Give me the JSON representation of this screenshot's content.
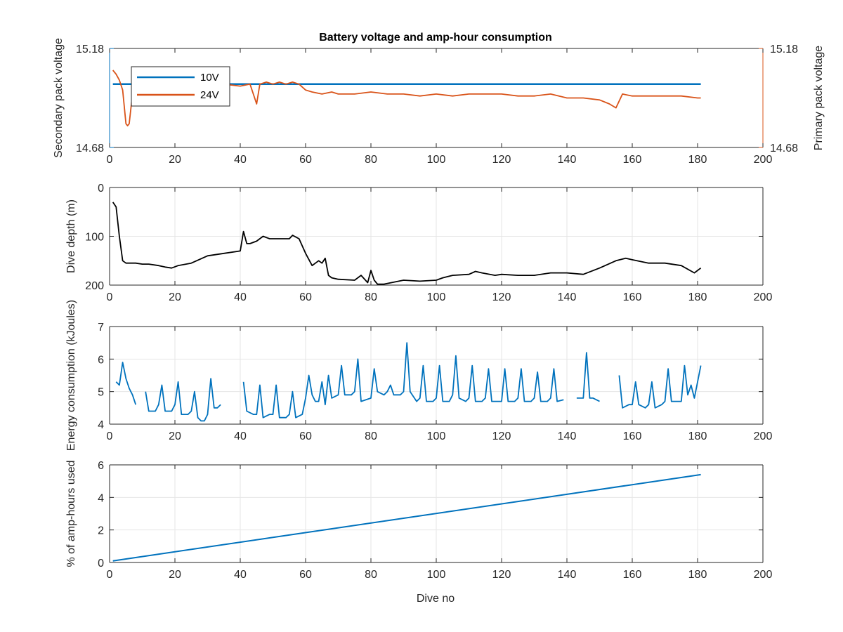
{
  "figure_title": "Battery voltage and amp-hour consumption",
  "x_label": "Dive no",
  "colors": {
    "blue": "#0072bd",
    "orange": "#d95319",
    "black": "#000000",
    "grid": "#e6e6e6"
  },
  "chart_data": [
    {
      "type": "line",
      "title": "Battery voltage and amp-hour consumption",
      "xlabel": "",
      "ylabel": "Secondary pack voltage",
      "ylabel_right": "Primary pack voltage",
      "xlim": [
        0,
        200
      ],
      "ylim": [
        14.68,
        15.18
      ],
      "ylim_right": [
        14.68,
        15.18
      ],
      "x_ticks": [
        0,
        20,
        40,
        60,
        80,
        100,
        120,
        140,
        160,
        180,
        200
      ],
      "y_ticks": [
        14.68,
        15.18
      ],
      "y_ticks_right": [
        14.68,
        15.18
      ],
      "grid": false,
      "legend": "top-left",
      "series": [
        {
          "name": "10V",
          "axis": "left",
          "color": "#0072bd",
          "x": [
            1,
            181
          ],
          "y": [
            15.0,
            15.0
          ]
        },
        {
          "name": "24V",
          "axis": "right",
          "color": "#d95319",
          "x": [
            1,
            2,
            3,
            4,
            5,
            5.5,
            6,
            7,
            8,
            10,
            15,
            20,
            25,
            30,
            35,
            40,
            43,
            44,
            45,
            46,
            48,
            50,
            52,
            54,
            56,
            58,
            60,
            62,
            65,
            68,
            70,
            75,
            80,
            85,
            90,
            95,
            100,
            105,
            110,
            115,
            120,
            125,
            130,
            135,
            140,
            145,
            150,
            153,
            155,
            157,
            160,
            165,
            170,
            175,
            180,
            181
          ],
          "y": [
            15.07,
            15.05,
            15.02,
            14.97,
            14.8,
            14.79,
            14.8,
            14.95,
            14.99,
            15.0,
            15.0,
            14.99,
            15.0,
            14.99,
            15.0,
            14.99,
            15.0,
            14.95,
            14.9,
            15.0,
            15.01,
            15.0,
            15.01,
            15.0,
            15.01,
            15.0,
            14.97,
            14.96,
            14.95,
            14.96,
            14.95,
            14.95,
            14.96,
            14.95,
            14.95,
            14.94,
            14.95,
            14.94,
            14.95,
            14.95,
            14.95,
            14.94,
            14.94,
            14.95,
            14.93,
            14.93,
            14.92,
            14.9,
            14.88,
            14.95,
            14.94,
            14.94,
            14.94,
            14.94,
            14.93,
            14.93
          ]
        }
      ]
    },
    {
      "type": "line",
      "xlabel": "",
      "ylabel": "Dive depth (m)",
      "xlim": [
        0,
        200
      ],
      "ylim": [
        0,
        200
      ],
      "y_reversed": true,
      "x_ticks": [
        0,
        20,
        40,
        60,
        80,
        100,
        120,
        140,
        160,
        180,
        200
      ],
      "y_ticks": [
        0,
        100,
        200
      ],
      "grid": true,
      "series": [
        {
          "color": "#000000",
          "x": [
            1,
            2,
            3,
            4,
            5,
            6,
            8,
            10,
            12,
            15,
            17,
            19,
            21,
            25,
            30,
            35,
            40,
            41,
            42,
            43,
            45,
            47,
            49,
            52,
            55,
            56,
            58,
            60,
            62,
            64,
            65,
            66,
            67,
            68,
            70,
            75,
            77,
            79,
            80,
            81,
            82,
            84,
            90,
            95,
            100,
            102,
            105,
            110,
            112,
            114,
            118,
            120,
            125,
            130,
            135,
            140,
            145,
            150,
            155,
            158,
            160,
            165,
            170,
            175,
            179,
            181
          ],
          "y": [
            30,
            40,
            100,
            150,
            155,
            155,
            155,
            157,
            157,
            160,
            163,
            165,
            160,
            155,
            140,
            135,
            130,
            90,
            115,
            115,
            110,
            100,
            105,
            105,
            105,
            98,
            105,
            135,
            160,
            150,
            155,
            145,
            180,
            185,
            188,
            190,
            180,
            195,
            170,
            190,
            198,
            198,
            190,
            192,
            190,
            185,
            180,
            178,
            172,
            175,
            180,
            178,
            180,
            180,
            175,
            175,
            178,
            165,
            150,
            145,
            148,
            155,
            155,
            160,
            175,
            165
          ]
        }
      ]
    },
    {
      "type": "line",
      "xlabel": "",
      "ylabel": "Energy consumption (kJoules)",
      "xlim": [
        0,
        200
      ],
      "ylim": [
        4,
        7
      ],
      "x_ticks": [
        0,
        20,
        40,
        60,
        80,
        100,
        120,
        140,
        160,
        180,
        200
      ],
      "y_ticks": [
        4,
        5,
        6,
        7
      ],
      "grid": true,
      "series": [
        {
          "color": "#0072bd",
          "segments": [
            {
              "x": [
                2,
                3,
                4,
                5,
                6,
                7,
                8
              ],
              "y": [
                5.3,
                5.2,
                5.9,
                5.4,
                5.1,
                4.9,
                4.6
              ]
            },
            {
              "x": [
                11,
                12,
                14,
                15,
                16,
                17,
                19,
                20,
                21,
                22,
                24,
                25,
                26,
                27,
                28,
                29,
                30,
                31,
                32,
                33,
                34
              ],
              "y": [
                5.0,
                4.4,
                4.4,
                4.6,
                5.2,
                4.4,
                4.4,
                4.6,
                5.3,
                4.3,
                4.3,
                4.4,
                5.0,
                4.2,
                4.1,
                4.1,
                4.3,
                5.4,
                4.5,
                4.5,
                4.6
              ]
            },
            {
              "x": [
                41,
                42,
                44,
                45,
                46,
                47,
                49,
                50,
                51,
                52,
                54,
                55,
                56,
                57,
                59,
                60,
                61,
                62,
                63,
                64,
                65,
                66,
                67,
                68,
                70,
                71,
                72,
                74,
                75,
                76,
                77,
                80,
                81,
                82,
                84,
                85,
                86,
                87,
                89,
                90,
                91,
                92,
                94,
                95,
                96,
                97,
                99,
                100,
                101,
                102,
                104,
                105,
                106,
                107,
                109,
                110,
                111,
                112,
                114,
                115,
                116,
                117,
                119,
                120,
                121,
                122,
                124,
                125,
                126,
                127,
                129,
                130,
                131,
                132,
                134,
                135,
                136,
                137,
                139
              ],
              "y": [
                5.3,
                4.4,
                4.3,
                4.3,
                5.2,
                4.2,
                4.3,
                4.3,
                5.2,
                4.2,
                4.2,
                4.3,
                5.0,
                4.2,
                4.3,
                4.8,
                5.5,
                4.9,
                4.7,
                4.7,
                5.3,
                4.6,
                5.5,
                4.8,
                4.9,
                5.8,
                4.9,
                4.9,
                5.0,
                6.0,
                4.7,
                4.8,
                5.7,
                5.0,
                4.9,
                5.0,
                5.2,
                4.9,
                4.9,
                5.0,
                6.5,
                5.0,
                4.7,
                4.8,
                5.8,
                4.7,
                4.7,
                4.8,
                5.8,
                4.7,
                4.7,
                4.9,
                6.1,
                4.8,
                4.7,
                4.8,
                5.8,
                4.7,
                4.7,
                4.8,
                5.7,
                4.7,
                4.7,
                4.7,
                5.7,
                4.7,
                4.7,
                4.8,
                5.7,
                4.7,
                4.7,
                4.8,
                5.6,
                4.7,
                4.7,
                4.8,
                5.7,
                4.7,
                4.75
              ]
            },
            {
              "x": [
                143,
                144,
                145,
                146,
                147,
                148,
                150
              ],
              "y": [
                4.8,
                4.8,
                4.8,
                6.2,
                4.8,
                4.8,
                4.7
              ]
            },
            {
              "x": [
                156,
                157,
                159,
                160,
                161,
                162,
                164,
                165,
                166,
                167,
                169,
                170,
                171,
                172,
                174,
                175,
                176,
                177,
                178,
                179,
                180,
                181
              ],
              "y": [
                5.5,
                4.5,
                4.6,
                4.6,
                5.3,
                4.6,
                4.5,
                4.6,
                5.3,
                4.5,
                4.6,
                4.7,
                5.7,
                4.7,
                4.7,
                4.7,
                5.8,
                4.9,
                5.2,
                4.8,
                5.3,
                5.8
              ]
            }
          ]
        }
      ]
    },
    {
      "type": "line",
      "xlabel": "Dive no",
      "ylabel": "% of amp-hours used",
      "xlim": [
        0,
        200
      ],
      "ylim": [
        0,
        6
      ],
      "x_ticks": [
        0,
        20,
        40,
        60,
        80,
        100,
        120,
        140,
        160,
        180,
        200
      ],
      "y_ticks": [
        0,
        2,
        4,
        6
      ],
      "grid": true,
      "series": [
        {
          "color": "#0072bd",
          "x": [
            1,
            181
          ],
          "y": [
            0.1,
            5.4
          ]
        }
      ]
    }
  ]
}
